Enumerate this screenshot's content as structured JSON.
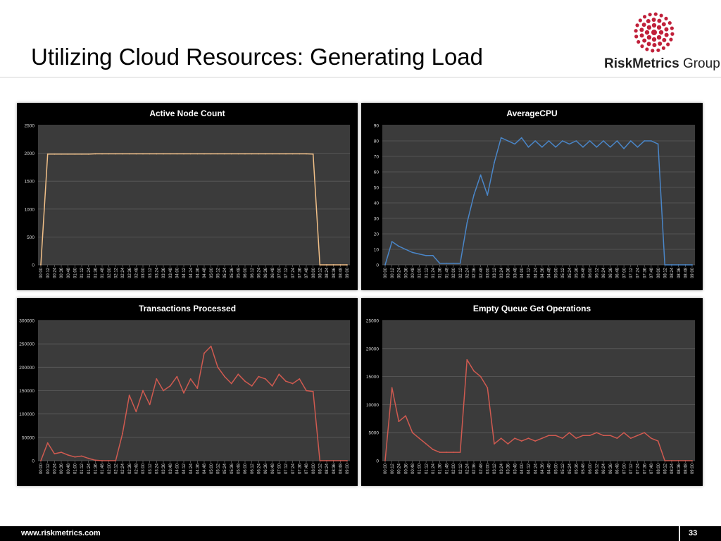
{
  "slide": {
    "title": "Utilizing Cloud Resources: Generating Load",
    "logo": {
      "name_bold": "RiskMetrics",
      "name_regular": " Group",
      "color": "#c0203a"
    },
    "footer": {
      "url": "www.riskmetrics.com",
      "page": "33"
    }
  },
  "time_labels": [
    "00:00",
    "00:12",
    "00:24",
    "00:36",
    "00:48",
    "01:00",
    "01:12",
    "01:24",
    "01:36",
    "01:48",
    "02:00",
    "02:12",
    "02:24",
    "02:36",
    "02:48",
    "03:00",
    "03:12",
    "03:24",
    "03:36",
    "03:48",
    "04:00",
    "04:12",
    "04:24",
    "04:36",
    "04:48",
    "05:00",
    "05:12",
    "05:24",
    "05:36",
    "05:48",
    "06:00",
    "06:12",
    "06:24",
    "06:36",
    "06:48",
    "07:00",
    "07:12",
    "07:24",
    "07:36",
    "07:48",
    "08:00",
    "08:12",
    "08:24",
    "08:36",
    "08:48",
    "09:00"
  ],
  "chart_data": [
    {
      "type": "line",
      "title": "Active Node Count",
      "color": "#f2c088",
      "ylim": [
        0,
        2500
      ],
      "yticks": [
        0,
        500,
        1000,
        1500,
        2000,
        2500
      ],
      "grid": true,
      "series": [
        {
          "values": [
            0,
            1985,
            1985,
            1985,
            1985,
            1985,
            1985,
            1985,
            1990,
            1990,
            1990,
            1990,
            1990,
            1990,
            1990,
            1990,
            1990,
            1990,
            1990,
            1990,
            1990,
            1990,
            1990,
            1990,
            1990,
            1990,
            1990,
            1990,
            1990,
            1990,
            1990,
            1990,
            1990,
            1990,
            1990,
            1990,
            1990,
            1990,
            1990,
            1990,
            1985,
            0,
            0,
            0,
            0,
            0
          ]
        }
      ]
    },
    {
      "type": "line",
      "title": "AverageCPU",
      "color": "#4a86c8",
      "ylim": [
        0,
        90
      ],
      "yticks": [
        0,
        10,
        20,
        30,
        40,
        50,
        60,
        70,
        80,
        90
      ],
      "grid": true,
      "series": [
        {
          "values": [
            0,
            15,
            12,
            10,
            8,
            7,
            6,
            6,
            1,
            1,
            1,
            1,
            27,
            45,
            58,
            45,
            66,
            82,
            80,
            78,
            82,
            76,
            80,
            76,
            80,
            76,
            80,
            78,
            80,
            76,
            80,
            76,
            80,
            76,
            80,
            75,
            80,
            76,
            80,
            80,
            78,
            0,
            0,
            0,
            0,
            0
          ]
        }
      ]
    },
    {
      "type": "line",
      "title": "Transactions Processed",
      "color": "#d05a50",
      "ylim": [
        0,
        300000
      ],
      "yticks": [
        0,
        50000,
        100000,
        150000,
        200000,
        250000,
        300000
      ],
      "grid": true,
      "series": [
        {
          "values": [
            0,
            38000,
            15000,
            18000,
            12000,
            8000,
            10000,
            5000,
            1000,
            0,
            0,
            0,
            58000,
            140000,
            105000,
            150000,
            120000,
            175000,
            150000,
            160000,
            180000,
            145000,
            175000,
            155000,
            230000,
            245000,
            200000,
            180000,
            165000,
            185000,
            170000,
            160000,
            180000,
            175000,
            160000,
            185000,
            170000,
            165000,
            175000,
            150000,
            148000,
            0,
            0,
            0,
            0,
            0
          ]
        }
      ]
    },
    {
      "type": "line",
      "title": "Empty Queue Get Operations",
      "color": "#d05a50",
      "ylim": [
        0,
        25000
      ],
      "yticks": [
        0,
        5000,
        10000,
        15000,
        20000,
        25000
      ],
      "grid": true,
      "series": [
        {
          "values": [
            0,
            13000,
            7000,
            8000,
            5000,
            4000,
            3000,
            2000,
            1500,
            1500,
            1500,
            1500,
            18000,
            16000,
            15000,
            13000,
            3000,
            4000,
            3000,
            4000,
            3500,
            4000,
            3500,
            4000,
            4500,
            4500,
            4000,
            5000,
            4000,
            4500,
            4500,
            5000,
            4500,
            4500,
            4000,
            5000,
            4000,
            4500,
            5000,
            4000,
            3500,
            0,
            0,
            0,
            0,
            0
          ]
        }
      ]
    }
  ]
}
